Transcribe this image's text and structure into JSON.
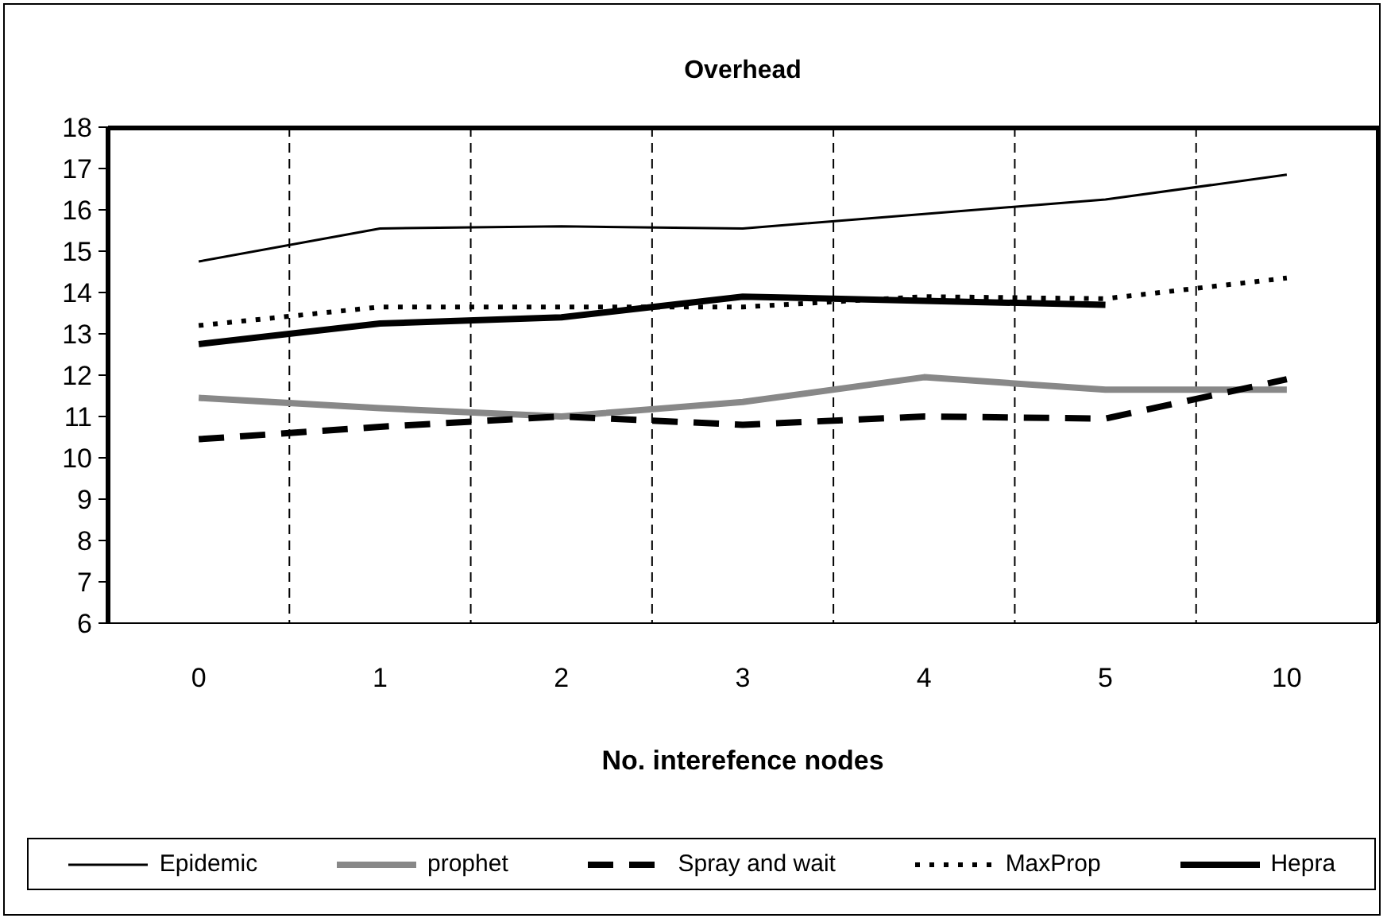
{
  "chart_data": {
    "type": "line",
    "title": "Overhead",
    "xlabel": "No. interefence nodes",
    "categories": [
      "0",
      "1",
      "2",
      "3",
      "4",
      "5",
      "10"
    ],
    "series": [
      {
        "name": "Epidemic",
        "color": "#000000",
        "line_style": "solid",
        "values": [
          14.75,
          15.55,
          15.6,
          15.55,
          15.9,
          16.25,
          16.85
        ]
      },
      {
        "name": "prophet",
        "color": "#888888",
        "line_style": "solid",
        "values": [
          11.45,
          11.2,
          11.0,
          11.35,
          11.95,
          11.65,
          11.65
        ]
      },
      {
        "name": "Spray and wait",
        "color": "#000000",
        "line_style": "dashed",
        "values": [
          10.45,
          10.75,
          11.0,
          10.8,
          11.0,
          10.95,
          11.9
        ]
      },
      {
        "name": "MaxProp",
        "color": "#000000",
        "line_style": "dotted",
        "values": [
          13.2,
          13.65,
          13.65,
          13.65,
          13.9,
          13.85,
          14.35
        ]
      },
      {
        "name": "Hepra",
        "color": "#000000",
        "line_style": "solid",
        "values": [
          12.75,
          13.25,
          13.4,
          13.9,
          13.8,
          13.7,
          null
        ]
      }
    ],
    "ylim": [
      6,
      18
    ],
    "yticks": [
      6,
      7,
      8,
      9,
      10,
      11,
      12,
      13,
      14,
      15,
      16,
      17,
      18
    ],
    "grid": "x",
    "legend": "bottom"
  }
}
